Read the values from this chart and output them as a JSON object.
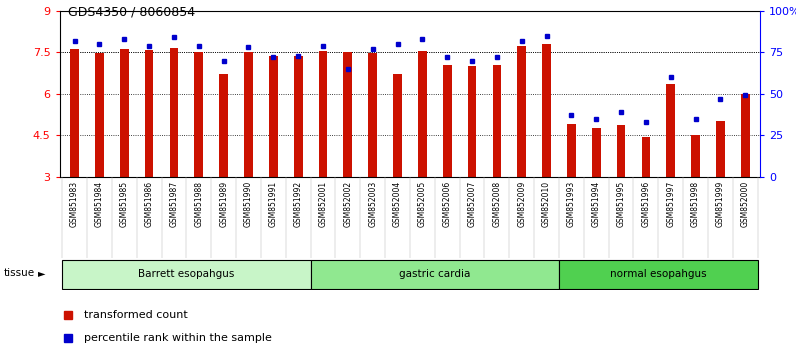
{
  "title": "GDS4350 / 8060854",
  "samples": [
    "GSM851983",
    "GSM851984",
    "GSM851985",
    "GSM851986",
    "GSM851987",
    "GSM851988",
    "GSM851989",
    "GSM851990",
    "GSM851991",
    "GSM851992",
    "GSM852001",
    "GSM852002",
    "GSM852003",
    "GSM852004",
    "GSM852005",
    "GSM852006",
    "GSM852007",
    "GSM852008",
    "GSM852009",
    "GSM852010",
    "GSM851993",
    "GSM851994",
    "GSM851995",
    "GSM851996",
    "GSM851997",
    "GSM851998",
    "GSM851999",
    "GSM852000"
  ],
  "red_values": [
    7.62,
    7.48,
    7.62,
    7.58,
    7.65,
    7.52,
    6.72,
    7.52,
    7.38,
    7.38,
    7.55,
    7.52,
    7.48,
    6.72,
    7.55,
    7.05,
    7.02,
    7.05,
    7.72,
    7.78,
    4.9,
    4.78,
    4.88,
    4.45,
    6.35,
    4.52,
    5.02,
    5.98
  ],
  "blue_values": [
    82,
    80,
    83,
    79,
    84,
    79,
    70,
    78,
    72,
    73,
    79,
    65,
    77,
    80,
    83,
    72,
    70,
    72,
    82,
    85,
    37,
    35,
    39,
    33,
    60,
    35,
    47,
    49
  ],
  "groups": [
    {
      "label": "Barrett esopahgus",
      "start": 0,
      "end": 10,
      "color": "#c8f5c8"
    },
    {
      "label": "gastric cardia",
      "start": 10,
      "end": 20,
      "color": "#90e890"
    },
    {
      "label": "normal esopahgus",
      "start": 20,
      "end": 28,
      "color": "#50d050"
    }
  ],
  "ylim_left": [
    3,
    9
  ],
  "ylim_right": [
    0,
    100
  ],
  "yticks_left": [
    3,
    4.5,
    6,
    7.5,
    9
  ],
  "yticks_right": [
    0,
    25,
    50,
    75,
    100
  ],
  "bar_color": "#cc1100",
  "dot_color": "#0000cc",
  "grid_color": "#000000",
  "bg_color": "#ffffff",
  "tick_bg": "#d0d0d0"
}
